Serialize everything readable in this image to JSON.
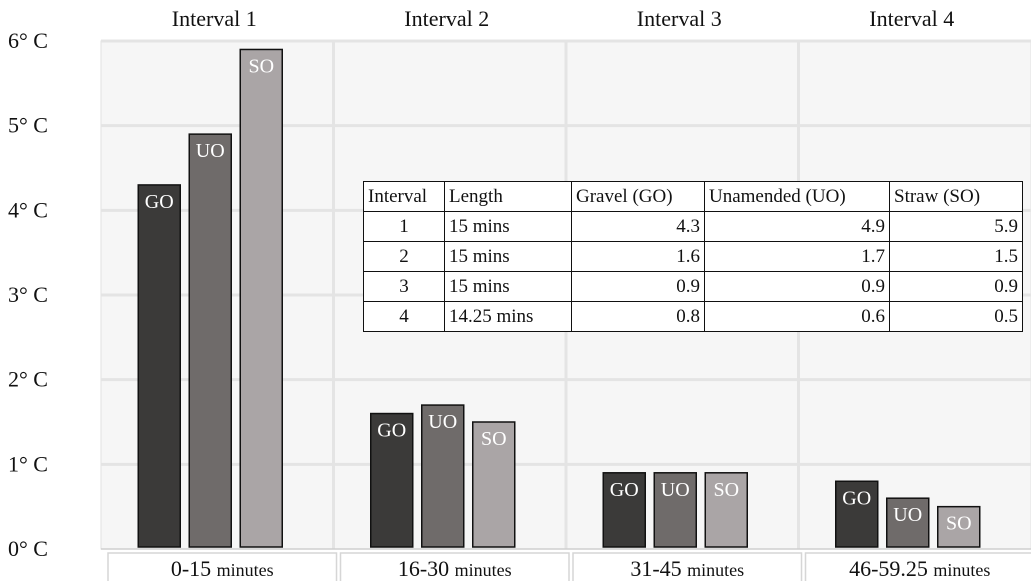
{
  "chart_data": {
    "type": "bar",
    "interval_labels": [
      "Interval 1",
      "Interval 2",
      "Interval 3",
      "Interval 4"
    ],
    "categories": [
      "0-15",
      "16-30",
      "31-45",
      "46-59.25"
    ],
    "category_unit": "minutes",
    "y_ticks": [
      "0° C",
      "1° C",
      "2° C",
      "3° C",
      "4° C",
      "5° C",
      "6° C"
    ],
    "ylim": [
      0,
      6
    ],
    "grid": true,
    "series": [
      {
        "name": "GO",
        "values": [
          4.3,
          1.6,
          0.9,
          0.8
        ],
        "color": "#3b3a39"
      },
      {
        "name": "UO",
        "values": [
          4.9,
          1.7,
          0.9,
          0.6
        ],
        "color": "#6f6b6a"
      },
      {
        "name": "SO",
        "values": [
          5.9,
          1.5,
          0.9,
          0.5
        ],
        "color": "#aaa5a6"
      }
    ]
  },
  "data_table": {
    "headers": [
      "Interval",
      "Length",
      "Gravel (GO)",
      "Unamended (UO)",
      "Straw (SO)"
    ],
    "rows": [
      [
        "1",
        "15 mins",
        "4.3",
        "4.9",
        "5.9"
      ],
      [
        "2",
        "15 mins",
        "1.6",
        "1.7",
        "1.5"
      ],
      [
        "3",
        "15 mins",
        "0.9",
        "0.9",
        "0.9"
      ],
      [
        "4",
        "14.25 mins",
        "0.8",
        "0.6",
        "0.5"
      ]
    ]
  }
}
